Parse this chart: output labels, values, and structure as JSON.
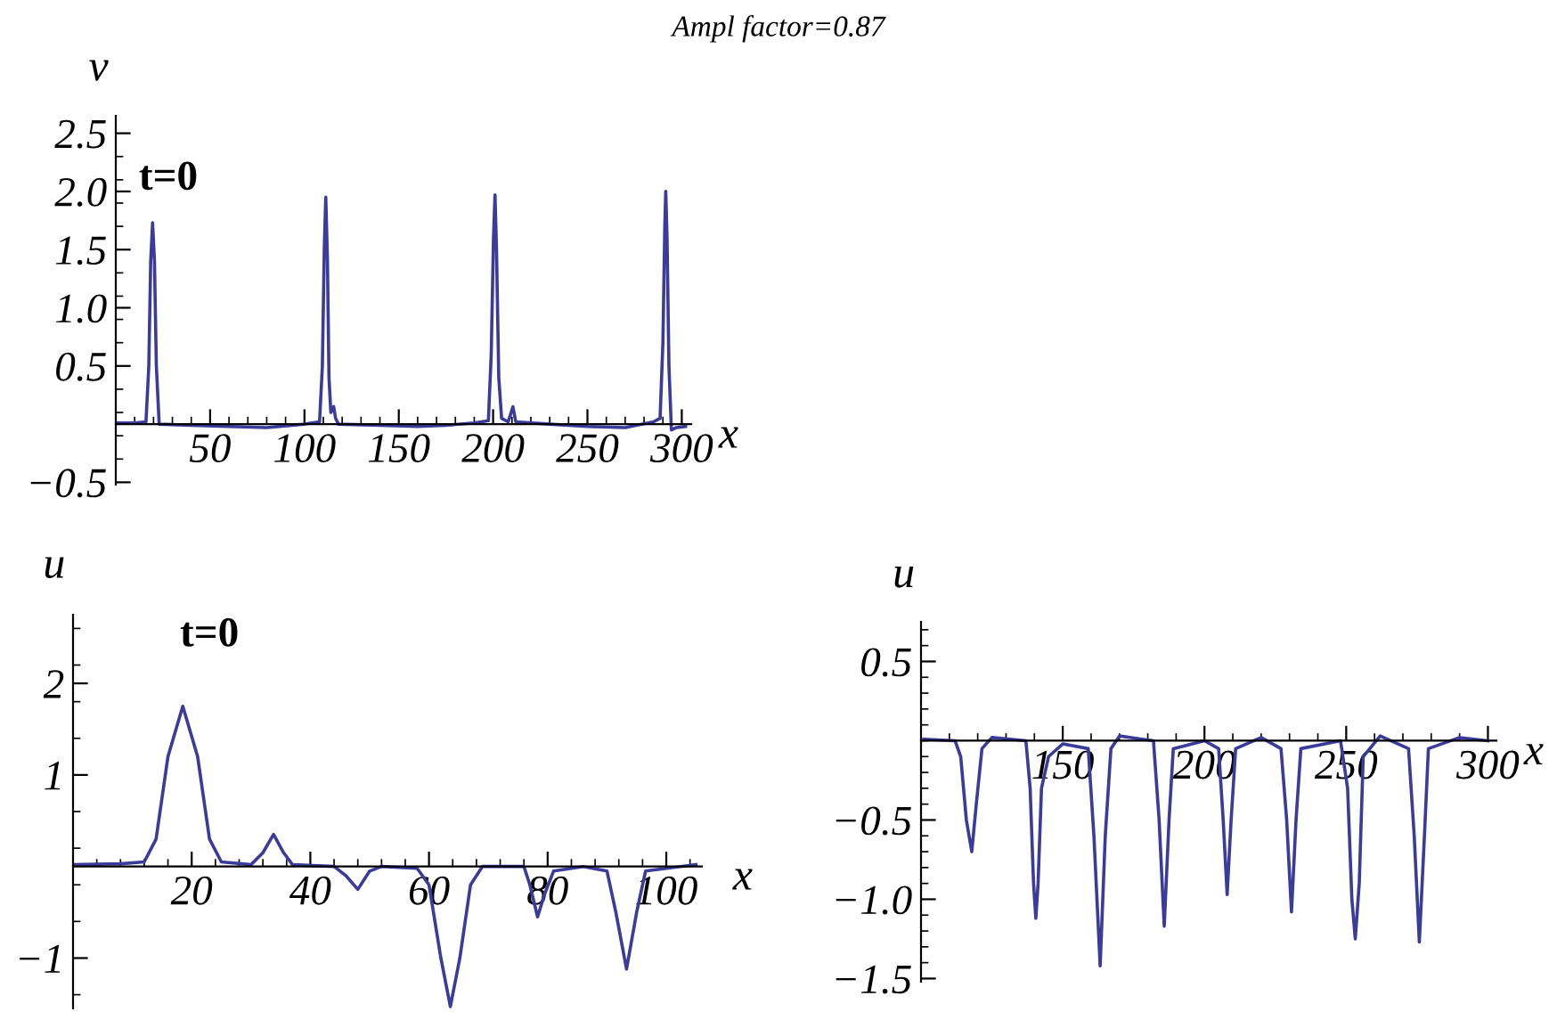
{
  "chart_data": [
    {
      "type": "line",
      "title": "Ampl factor=0.87",
      "xlabel": "x",
      "ylabel": "v",
      "annotations": [
        "t=0"
      ],
      "series": [
        {
          "color": "#3b3b9c",
          "x": [
            0,
            10,
            16,
            17.5,
            18.5,
            19.5,
            20.5,
            21.5,
            23,
            40,
            60,
            80,
            100,
            108,
            109.5,
            110.5,
            111.3,
            112.2,
            113,
            114,
            115.5,
            116.5,
            118,
            140,
            160,
            175,
            190,
            197.5,
            199,
            200.2,
            201,
            201.8,
            203,
            204.5,
            208,
            210.5,
            212,
            230,
            250,
            270,
            285,
            288.5,
            290,
            291,
            291.5,
            292.2,
            293.2,
            294.5,
            297,
            302
          ],
          "values": [
            0.01,
            0.01,
            0.02,
            0.5,
            1.4,
            1.73,
            1.4,
            0.5,
            0,
            -0.01,
            -0.02,
            -0.03,
            0,
            0.02,
            0.5,
            1.5,
            1.95,
            1.4,
            0.4,
            0.1,
            0.15,
            0.05,
            0,
            -0.01,
            -0.02,
            -0.01,
            0.01,
            0.03,
            0.6,
            1.6,
            1.97,
            1.5,
            0.4,
            0.05,
            0.02,
            0.15,
            0.02,
            0,
            -0.02,
            -0.03,
            0.02,
            0.05,
            0.7,
            1.7,
            2.0,
            1.6,
            0.5,
            -0.05,
            -0.03,
            -0.02
          ]
        }
      ],
      "xlim": [
        0,
        305
      ],
      "ylim": [
        -0.52,
        2.65
      ],
      "xticks": [
        50,
        100,
        150,
        200,
        250,
        300
      ],
      "yticks": [
        {
          "value": -0.5,
          "label": "−0.5"
        },
        0.5,
        {
          "value": 1,
          "label": "1.0"
        },
        1.5,
        {
          "value": 2,
          "label": "2.0"
        },
        2.5
      ],
      "line_style": "solid",
      "marker": "none",
      "grid": false,
      "legend": false
    },
    {
      "type": "line",
      "xlabel": "x",
      "ylabel": "u",
      "annotations": [
        "t=0"
      ],
      "series": [
        {
          "color": "#3b3b9c",
          "x": [
            0,
            8,
            12,
            14,
            16,
            18.5,
            21,
            23,
            25,
            30,
            32,
            33.8,
            35.5,
            37,
            44,
            46,
            48,
            50,
            52,
            58,
            60,
            62,
            63.6,
            65.2,
            67,
            69,
            76,
            77,
            78.3,
            79.5,
            81,
            86,
            90,
            91.5,
            93.3,
            95,
            96.5,
            100,
            105
          ],
          "values": [
            0.02,
            0.03,
            0.05,
            0.3,
            1.2,
            1.75,
            1.2,
            0.3,
            0.05,
            0.02,
            0.15,
            0.35,
            0.15,
            0.02,
            0,
            -0.1,
            -0.25,
            -0.05,
            0,
            -0.02,
            -0.2,
            -1.0,
            -1.53,
            -1.0,
            -0.2,
            0,
            0,
            -0.2,
            -0.55,
            -0.3,
            -0.05,
            0,
            -0.05,
            -0.5,
            -1.12,
            -0.5,
            -0.05,
            -0.02,
            0.02
          ]
        }
      ],
      "xlim": [
        0,
        106
      ],
      "ylim": [
        -1.55,
        2.75
      ],
      "xticks": [
        20,
        40,
        60,
        80,
        100
      ],
      "yticks": [
        {
          "value": -1,
          "label": "−1"
        },
        1,
        2
      ],
      "line_style": "solid",
      "marker": "none",
      "grid": false,
      "legend": false
    },
    {
      "type": "line",
      "xlabel": "x",
      "ylabel": "u",
      "series": [
        {
          "color": "#3b3b9c",
          "x": [
            101,
            112,
            114,
            116,
            117.9,
            119.5,
            121.5,
            125,
            137,
            138.5,
            139.7,
            140.5,
            141.3,
            142.5,
            145,
            150,
            159,
            161,
            163.2,
            165,
            167,
            170,
            182,
            184,
            185.8,
            187.5,
            189,
            200,
            205,
            206.6,
            208,
            209.4,
            211,
            220,
            227,
            229,
            230.7,
            232.3,
            234,
            248,
            250.5,
            252,
            253.2,
            254.6,
            256,
            262,
            272,
            274,
            275.8,
            277.6,
            279,
            290,
            300
          ],
          "values": [
            0.01,
            0,
            -0.1,
            -0.5,
            -0.7,
            -0.4,
            -0.05,
            0.02,
            0,
            -0.3,
            -0.9,
            -1.12,
            -0.9,
            -0.3,
            -0.1,
            -0.02,
            -0.05,
            -0.6,
            -1.42,
            -0.6,
            -0.05,
            0.03,
            0,
            -0.5,
            -1.17,
            -0.5,
            -0.05,
            0,
            -0.05,
            -0.5,
            -0.97,
            -0.5,
            -0.05,
            0.02,
            -0.05,
            -0.5,
            -1.08,
            -0.5,
            -0.05,
            0,
            -0.3,
            -1.0,
            -1.25,
            -0.9,
            -0.1,
            0.03,
            -0.05,
            -0.6,
            -1.27,
            -0.6,
            -0.05,
            0.02,
            0
          ]
        }
      ],
      "xlim": [
        100,
        303
      ],
      "ylim": [
        -1.52,
        0.75
      ],
      "xticks": [
        150,
        200,
        250,
        300
      ],
      "yticks": [
        {
          "value": -1.5,
          "label": "−1.5"
        },
        {
          "value": -1.0,
          "label": "−1.0"
        },
        {
          "value": -0.5,
          "label": "−0.5"
        },
        0.5
      ],
      "line_style": "solid",
      "marker": "none",
      "grid": false,
      "legend": false
    }
  ]
}
